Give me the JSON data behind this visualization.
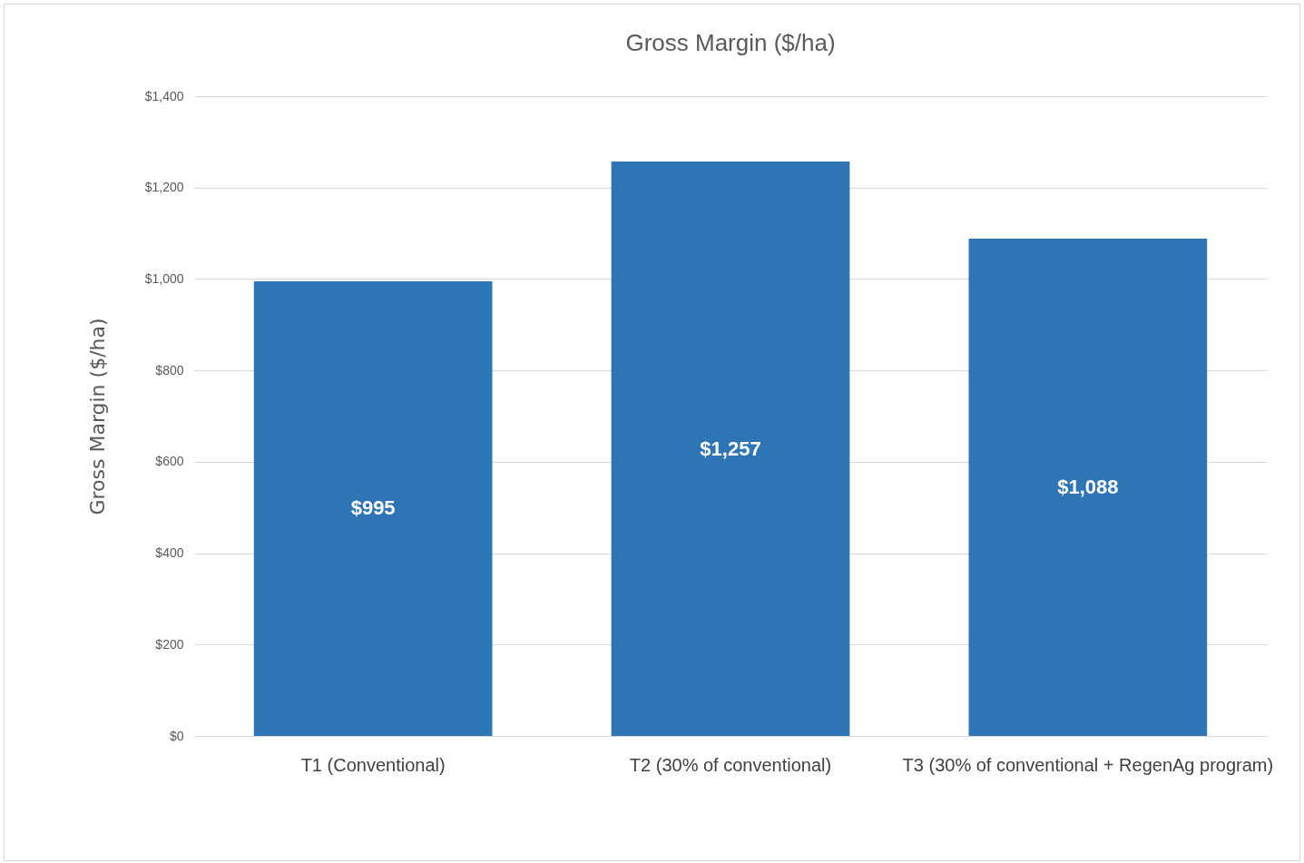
{
  "chart_data": {
    "type": "bar",
    "title": "Gross Margin ($/ha)",
    "ylabel": "Gross Margin ($/ha)",
    "categories": [
      "T1 (Conventional)",
      "T2 (30% of conventional)",
      "T3 (30% of conventional + RegenAg program)"
    ],
    "values": [
      995,
      1257,
      1088
    ],
    "value_labels": [
      "$995",
      "$1,257",
      "$1,088"
    ],
    "color": "#2e75b6",
    "ylim": [
      0,
      1400
    ],
    "yticks": [
      {
        "value": 0,
        "label": "$0"
      },
      {
        "value": 200,
        "label": "$200"
      },
      {
        "value": 400,
        "label": "$400"
      },
      {
        "value": 600,
        "label": "$600"
      },
      {
        "value": 800,
        "label": "$800"
      },
      {
        "value": 1000,
        "label": "$1,000"
      },
      {
        "value": 1200,
        "label": "$1,200"
      },
      {
        "value": 1400,
        "label": "$1,400"
      }
    ],
    "grid": "y"
  }
}
